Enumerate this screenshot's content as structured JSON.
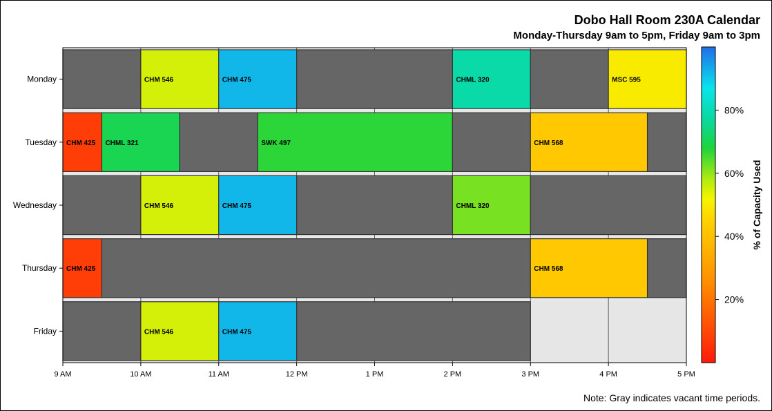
{
  "chart_data": {
    "type": "bar",
    "title": "Dobo Hall Room 230A Calendar",
    "subtitle": "Monday-Thursday 9am to 5pm, Friday 9am to 3pm",
    "x_ticks": [
      "9 AM",
      "10 AM",
      "11 AM",
      "12 PM",
      "1 PM",
      "2 PM",
      "3 PM",
      "4 PM",
      "5 PM"
    ],
    "xlim_hours": [
      9,
      17
    ],
    "days": [
      "Monday",
      "Tuesday",
      "Wednesday",
      "Thursday",
      "Friday"
    ],
    "vacant_color": "#666666",
    "closed_color": "#e6e6e6",
    "closed_periods": [
      {
        "day": "Friday",
        "start": 15,
        "end": 17
      }
    ],
    "events": [
      {
        "day": "Monday",
        "start": 9,
        "end": 10,
        "label": "",
        "capacity": null
      },
      {
        "day": "Monday",
        "start": 10,
        "end": 11,
        "label": "CHM 546",
        "capacity": 55
      },
      {
        "day": "Monday",
        "start": 11,
        "end": 12,
        "label": "CHM 475",
        "capacity": 92
      },
      {
        "day": "Monday",
        "start": 12,
        "end": 14,
        "label": "",
        "capacity": null
      },
      {
        "day": "Monday",
        "start": 14,
        "end": 15,
        "label": "CHML 320",
        "capacity": 78
      },
      {
        "day": "Monday",
        "start": 15,
        "end": 16,
        "label": "",
        "capacity": null
      },
      {
        "day": "Monday",
        "start": 16,
        "end": 17,
        "label": "MSC 595",
        "capacity": 50
      },
      {
        "day": "Tuesday",
        "start": 9,
        "end": 9.5,
        "label": "CHM 425",
        "capacity": 8
      },
      {
        "day": "Tuesday",
        "start": 9.5,
        "end": 10.5,
        "label": "CHML 321",
        "capacity": 70
      },
      {
        "day": "Tuesday",
        "start": 10.5,
        "end": 11.5,
        "label": "",
        "capacity": null
      },
      {
        "day": "Tuesday",
        "start": 11.5,
        "end": 14,
        "label": "SWK 497",
        "capacity": 67
      },
      {
        "day": "Tuesday",
        "start": 14,
        "end": 15,
        "label": "",
        "capacity": null
      },
      {
        "day": "Tuesday",
        "start": 15,
        "end": 16.5,
        "label": "CHM 568",
        "capacity": 42
      },
      {
        "day": "Tuesday",
        "start": 16.5,
        "end": 17,
        "label": "",
        "capacity": null
      },
      {
        "day": "Wednesday",
        "start": 9,
        "end": 10,
        "label": "",
        "capacity": null
      },
      {
        "day": "Wednesday",
        "start": 10,
        "end": 11,
        "label": "CHM 546",
        "capacity": 55
      },
      {
        "day": "Wednesday",
        "start": 11,
        "end": 12,
        "label": "CHM 475",
        "capacity": 92
      },
      {
        "day": "Wednesday",
        "start": 12,
        "end": 14,
        "label": "",
        "capacity": null
      },
      {
        "day": "Wednesday",
        "start": 14,
        "end": 15,
        "label": "CHML 320",
        "capacity": 62
      },
      {
        "day": "Wednesday",
        "start": 15,
        "end": 17,
        "label": "",
        "capacity": null
      },
      {
        "day": "Thursday",
        "start": 9,
        "end": 9.5,
        "label": "CHM 425",
        "capacity": 8
      },
      {
        "day": "Thursday",
        "start": 9.5,
        "end": 15,
        "label": "",
        "capacity": null
      },
      {
        "day": "Thursday",
        "start": 15,
        "end": 16.5,
        "label": "CHM 568",
        "capacity": 42
      },
      {
        "day": "Thursday",
        "start": 16.5,
        "end": 17,
        "label": "",
        "capacity": null
      },
      {
        "day": "Friday",
        "start": 9,
        "end": 10,
        "label": "",
        "capacity": null
      },
      {
        "day": "Friday",
        "start": 10,
        "end": 11,
        "label": "CHM 546",
        "capacity": 55
      },
      {
        "day": "Friday",
        "start": 11,
        "end": 12,
        "label": "CHM 475",
        "capacity": 92
      },
      {
        "day": "Friday",
        "start": 12,
        "end": 15,
        "label": "",
        "capacity": null
      }
    ],
    "colorbar": {
      "title": "% of Capacity Used",
      "range": [
        0,
        100
      ],
      "ticks": [
        "20%",
        "40%",
        "60%",
        "80%"
      ],
      "tick_values": [
        20,
        40,
        60,
        80
      ],
      "stops": [
        {
          "at": 0,
          "color": "#ff1a0a"
        },
        {
          "at": 25,
          "color": "#ff8c00"
        },
        {
          "at": 45,
          "color": "#ffd200"
        },
        {
          "at": 52,
          "color": "#f5f500"
        },
        {
          "at": 58,
          "color": "#b2ea10"
        },
        {
          "at": 68,
          "color": "#1ed43c"
        },
        {
          "at": 77,
          "color": "#0ad8a0"
        },
        {
          "at": 87,
          "color": "#0ae4ec"
        },
        {
          "at": 100,
          "color": "#1f6ee8"
        }
      ]
    },
    "grid": true
  },
  "note": "Note: Gray indicates vacant time periods."
}
